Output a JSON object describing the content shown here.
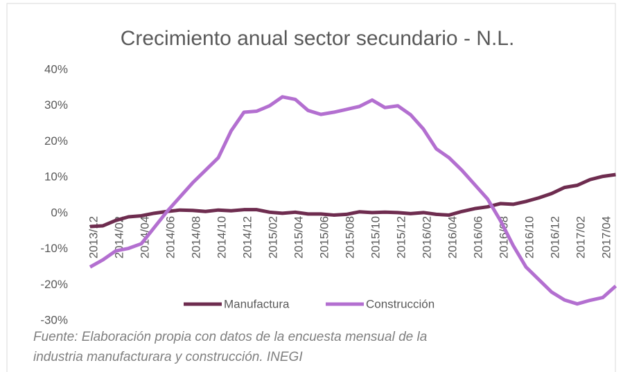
{
  "chart_data": {
    "type": "line",
    "title": "Crecimiento anual sector secundario - N.L.",
    "categories": [
      "2013/12",
      null,
      "2014/02",
      null,
      "2014/04",
      null,
      "2014/06",
      null,
      "2014/08",
      null,
      "2014/10",
      null,
      "2014/12",
      null,
      "2015/02",
      null,
      "2015/04",
      null,
      "2015/06",
      null,
      "2015/08",
      null,
      "2015/10",
      null,
      "2015/12",
      null,
      "2016/02",
      null,
      "2016/04",
      null,
      "2016/06",
      null,
      "2016/08",
      null,
      "2016/10",
      null,
      "2016/12",
      null,
      "2017/02",
      null,
      "2017/04",
      null
    ],
    "series": [
      {
        "name": "Manufactura",
        "color": "#6e2c4f",
        "values": [
          -3.7,
          -3.5,
          -2,
          -1,
          -0.7,
          0,
          0.5,
          0.9,
          0.8,
          0.5,
          0.9,
          0.7,
          1,
          1,
          0.3,
          0,
          0.3,
          -0.2,
          -0.2,
          -0.5,
          -0.3,
          0.4,
          0.2,
          0.3,
          0.2,
          -0.1,
          0.2,
          -0.3,
          -0.5,
          0.5,
          1.3,
          1.8,
          2.7,
          2.5,
          3.3,
          4.3,
          5.5,
          7.2,
          7.8,
          9.4,
          10.3,
          10.8
        ]
      },
      {
        "name": "Construcción",
        "color": "#b36fd0",
        "values": [
          -15,
          -13,
          -10.5,
          -9.8,
          -8.5,
          -4,
          0.5,
          4.5,
          8.5,
          12,
          15.5,
          23,
          28.2,
          28.5,
          30,
          32.5,
          31.8,
          28.7,
          27.6,
          28.2,
          29,
          29.8,
          31.6,
          29.5,
          30,
          27.5,
          23.5,
          18,
          15.5,
          12,
          8,
          4,
          -2,
          -9,
          -15,
          -18.5,
          -22,
          -24.2,
          -25.3,
          -24.3,
          -23.5,
          -20.3
        ]
      }
    ],
    "ylim": [
      -30,
      40
    ],
    "yticks": [
      {
        "value": -30,
        "label": "-30%"
      },
      {
        "value": -20,
        "label": "-20%"
      },
      {
        "value": -10,
        "label": "-10%"
      },
      {
        "value": 0,
        "label": "0%"
      },
      {
        "value": 10,
        "label": "10%"
      },
      {
        "value": 20,
        "label": "20%"
      },
      {
        "value": 30,
        "label": "30%"
      },
      {
        "value": 40,
        "label": "40%"
      }
    ],
    "grid": false,
    "legend": "bottom",
    "source": [
      "Fuente: Elaboración propia con datos de la encuesta mensual de la",
      "industria manufacturara y construcción. INEGI"
    ]
  }
}
